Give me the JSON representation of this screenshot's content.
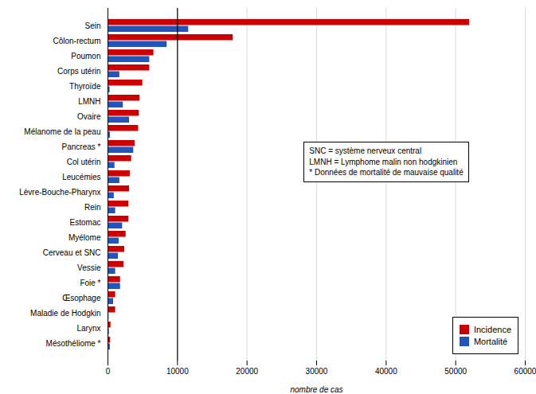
{
  "chart_data": {
    "type": "bar",
    "orientation": "horizontal",
    "categories": [
      "Sein",
      "Côlon-rectum",
      "Poumon",
      "Corps utérin",
      "Thyroïde",
      "LMNH",
      "Ovaire",
      "Mélanome de la peau",
      "Pancreas *",
      "Col utérin",
      "Leucémies",
      "Lèvre-Bouche-Pharynx",
      "Rein",
      "Estomac",
      "Myélome",
      "Cerveau et SNC",
      "Vessie",
      "Foie *",
      "Œsophage",
      "Maladie de Hodgkin",
      "Larynx",
      "Mésothéliome *"
    ],
    "series": [
      {
        "name": "Incidence",
        "color": "#cc0000",
        "values": [
          52000,
          18000,
          6600,
          6000,
          5000,
          4600,
          4500,
          4400,
          3900,
          3400,
          3200,
          3100,
          3000,
          3000,
          2600,
          2400,
          2300,
          1800,
          1100,
          1100,
          430,
          380
        ]
      },
      {
        "name": "Mortalité",
        "color": "#2255bb",
        "values": [
          11600,
          8500,
          6000,
          1700,
          300,
          2200,
          3100,
          350,
          3700,
          1000,
          1700,
          900,
          1100,
          2100,
          1600,
          1500,
          1100,
          1800,
          800,
          150,
          190,
          340
        ]
      }
    ],
    "xlabel": "nombre de cas",
    "xlim": [
      0,
      60000
    ],
    "xticks": [
      0,
      10000,
      20000,
      30000,
      40000,
      50000,
      60000
    ],
    "vlines": [
      10000
    ],
    "annotation": "SNC = système nerveux central\nLMNH = Lymphome malin non hodgkinien\n* Données de mortalité de mauvaise qualité",
    "grid": true,
    "legend": "lower right"
  }
}
